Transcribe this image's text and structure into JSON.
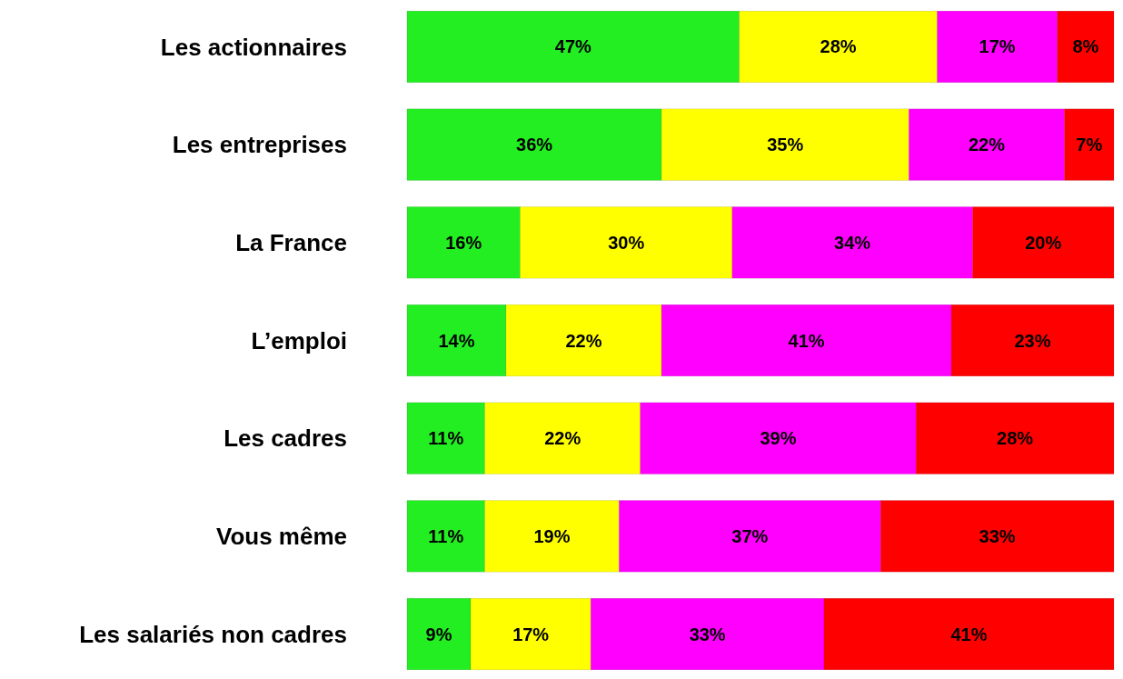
{
  "chart_data": {
    "type": "bar",
    "orientation": "horizontal",
    "stacked": true,
    "categories": [
      "Les actionnaires",
      "Les entreprises",
      "La France",
      "L’emploi",
      "Les cadres",
      "Vous même",
      "Les salariés non cadres"
    ],
    "series": [
      {
        "color": "#22ee22",
        "values": [
          47,
          36,
          16,
          14,
          11,
          11,
          9
        ],
        "value_labels": [
          "47%",
          "36%",
          "16%",
          "14%",
          "11%",
          "11%",
          "9%"
        ]
      },
      {
        "color": "#ffff00",
        "values": [
          28,
          35,
          30,
          22,
          22,
          19,
          17
        ],
        "value_labels": [
          "28%",
          "35%",
          "30%",
          "22%",
          "22%",
          "19%",
          "17%"
        ]
      },
      {
        "color": "#ff00ff",
        "values": [
          17,
          22,
          34,
          41,
          39,
          37,
          33
        ],
        "value_labels": [
          "17%",
          "22%",
          "34%",
          "41%",
          "39%",
          "37%",
          "33%"
        ]
      },
      {
        "color": "#ff0000",
        "values": [
          8,
          7,
          20,
          23,
          28,
          33,
          41
        ],
        "value_labels": [
          "8%",
          "7%",
          "20%",
          "23%",
          "28%",
          "33%",
          "41%"
        ]
      }
    ]
  }
}
